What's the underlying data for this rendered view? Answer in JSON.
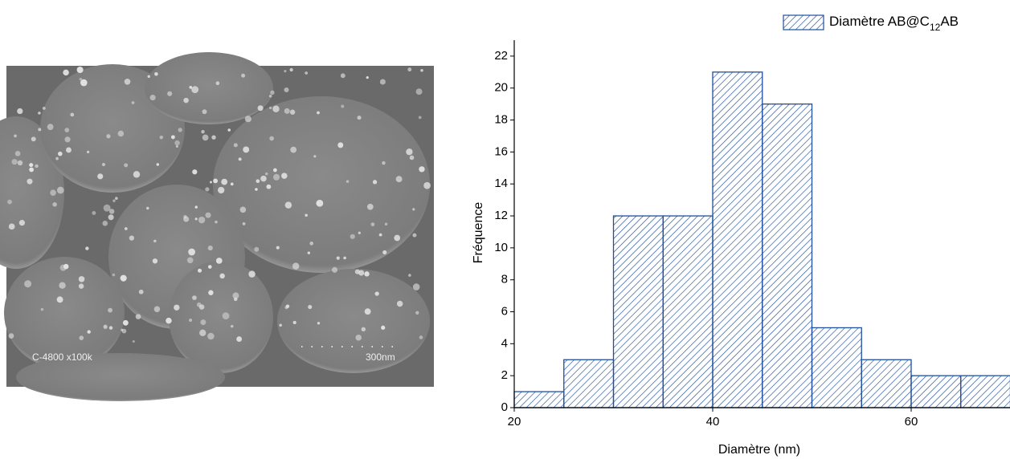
{
  "image": {
    "label": "C-4800 x100k",
    "scale_bar": "300nm"
  },
  "chart_data": {
    "type": "histogram",
    "xlabel": "Diamètre (nm)",
    "ylabel": "Fréquence",
    "bins": [
      20,
      25,
      30,
      35,
      40,
      45,
      50,
      55,
      60,
      65,
      70
    ],
    "series": [
      {
        "name": "Diamètre AB@C12AB",
        "color": "#1f4f9e",
        "values": [
          1,
          3,
          12,
          12,
          21,
          19,
          5,
          3,
          2,
          2
        ]
      }
    ],
    "xlim": [
      20,
      70
    ],
    "xticks": [
      20,
      40,
      60
    ],
    "ylim": [
      0,
      23
    ],
    "yticks": [
      0,
      2,
      4,
      6,
      8,
      10,
      12,
      14,
      16,
      18,
      20,
      22
    ],
    "legend": "top-right",
    "grid": false
  }
}
